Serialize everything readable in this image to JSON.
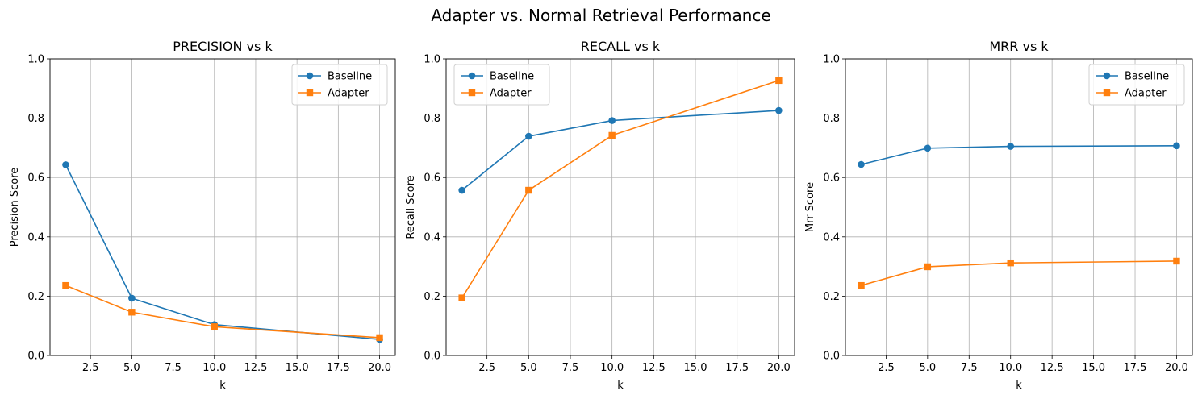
{
  "figure": {
    "suptitle": "Adapter vs. Normal Retrieval Performance"
  },
  "colors": {
    "baseline": "#1f77b4",
    "adapter": "#ff7f0e",
    "grid": "#b0b0b0"
  },
  "chart_data": [
    {
      "type": "line",
      "title": "PRECISION vs k",
      "xlabel": "k",
      "ylabel": "Precision Score",
      "xlim": [
        0.05,
        20.95
      ],
      "ylim": [
        0,
        1
      ],
      "xticks": [
        2.5,
        5.0,
        7.5,
        10.0,
        12.5,
        15.0,
        17.5,
        20.0
      ],
      "yticks": [
        0.0,
        0.2,
        0.4,
        0.6,
        0.8,
        1.0
      ],
      "grid": true,
      "legend": "top-right",
      "x": [
        1,
        5,
        10,
        20
      ],
      "series": [
        {
          "name": "Baseline",
          "marker": "circle",
          "values": [
            0.643,
            0.193,
            0.104,
            0.054
          ]
        },
        {
          "name": "Adapter",
          "marker": "square",
          "values": [
            0.236,
            0.146,
            0.097,
            0.06
          ]
        }
      ]
    },
    {
      "type": "line",
      "title": "RECALL vs k",
      "xlabel": "k",
      "ylabel": "Recall Score",
      "xlim": [
        0.05,
        20.95
      ],
      "ylim": [
        0,
        1
      ],
      "xticks": [
        2.5,
        5.0,
        7.5,
        10.0,
        12.5,
        15.0,
        17.5,
        20.0
      ],
      "yticks": [
        0.0,
        0.2,
        0.4,
        0.6,
        0.8,
        1.0
      ],
      "grid": true,
      "legend": "top-left",
      "x": [
        1,
        5,
        10,
        20
      ],
      "series": [
        {
          "name": "Baseline",
          "marker": "circle",
          "values": [
            0.557,
            0.739,
            0.792,
            0.826
          ]
        },
        {
          "name": "Adapter",
          "marker": "square",
          "values": [
            0.194,
            0.557,
            0.742,
            0.927
          ]
        }
      ]
    },
    {
      "type": "line",
      "title": "MRR vs k",
      "xlabel": "k",
      "ylabel": "Mrr Score",
      "xlim": [
        0.05,
        20.95
      ],
      "ylim": [
        0,
        1
      ],
      "xticks": [
        2.5,
        5.0,
        7.5,
        10.0,
        12.5,
        15.0,
        17.5,
        20.0
      ],
      "yticks": [
        0.0,
        0.2,
        0.4,
        0.6,
        0.8,
        1.0
      ],
      "grid": true,
      "legend": "top-right",
      "x": [
        1,
        5,
        10,
        20
      ],
      "series": [
        {
          "name": "Baseline",
          "marker": "circle",
          "values": [
            0.644,
            0.699,
            0.705,
            0.707
          ]
        },
        {
          "name": "Adapter",
          "marker": "square",
          "values": [
            0.236,
            0.299,
            0.312,
            0.318
          ]
        }
      ]
    }
  ]
}
